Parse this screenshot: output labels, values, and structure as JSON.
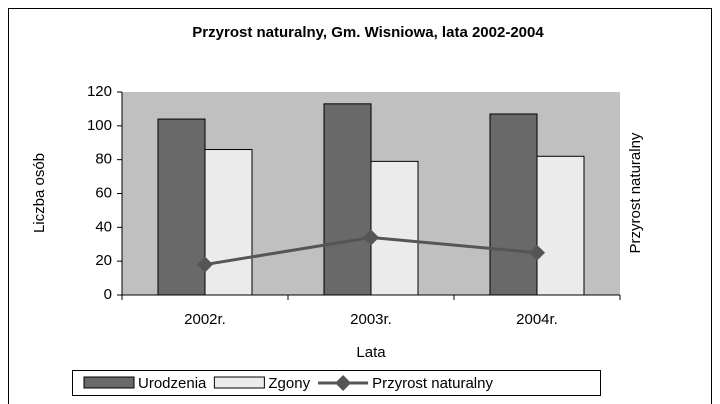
{
  "chart_data": {
    "type": "bar",
    "title": "Przyrost naturalny, Gm. Wisniowa, lata 2002-2004",
    "y_label": "Liczba osób",
    "y2_label": "Przyrost naturalny",
    "x_label": "Lata",
    "categories": [
      "2002r.",
      "2003r.",
      "2004r."
    ],
    "series": [
      {
        "name": "Urodzenia",
        "type": "bar",
        "color": "#696969",
        "values": [
          104,
          113,
          107
        ]
      },
      {
        "name": "Zgony",
        "type": "bar",
        "color": "#ebebeb",
        "values": [
          86,
          79,
          82
        ]
      },
      {
        "name": "Przyrost naturalny",
        "type": "line",
        "color": "#555555",
        "values": [
          18,
          34,
          25
        ]
      }
    ],
    "ylim": [
      0,
      120
    ],
    "yticks": [
      0,
      20,
      40,
      60,
      80,
      100,
      120
    ],
    "legend": "bottom",
    "plot_background": "#c0c0c0"
  }
}
